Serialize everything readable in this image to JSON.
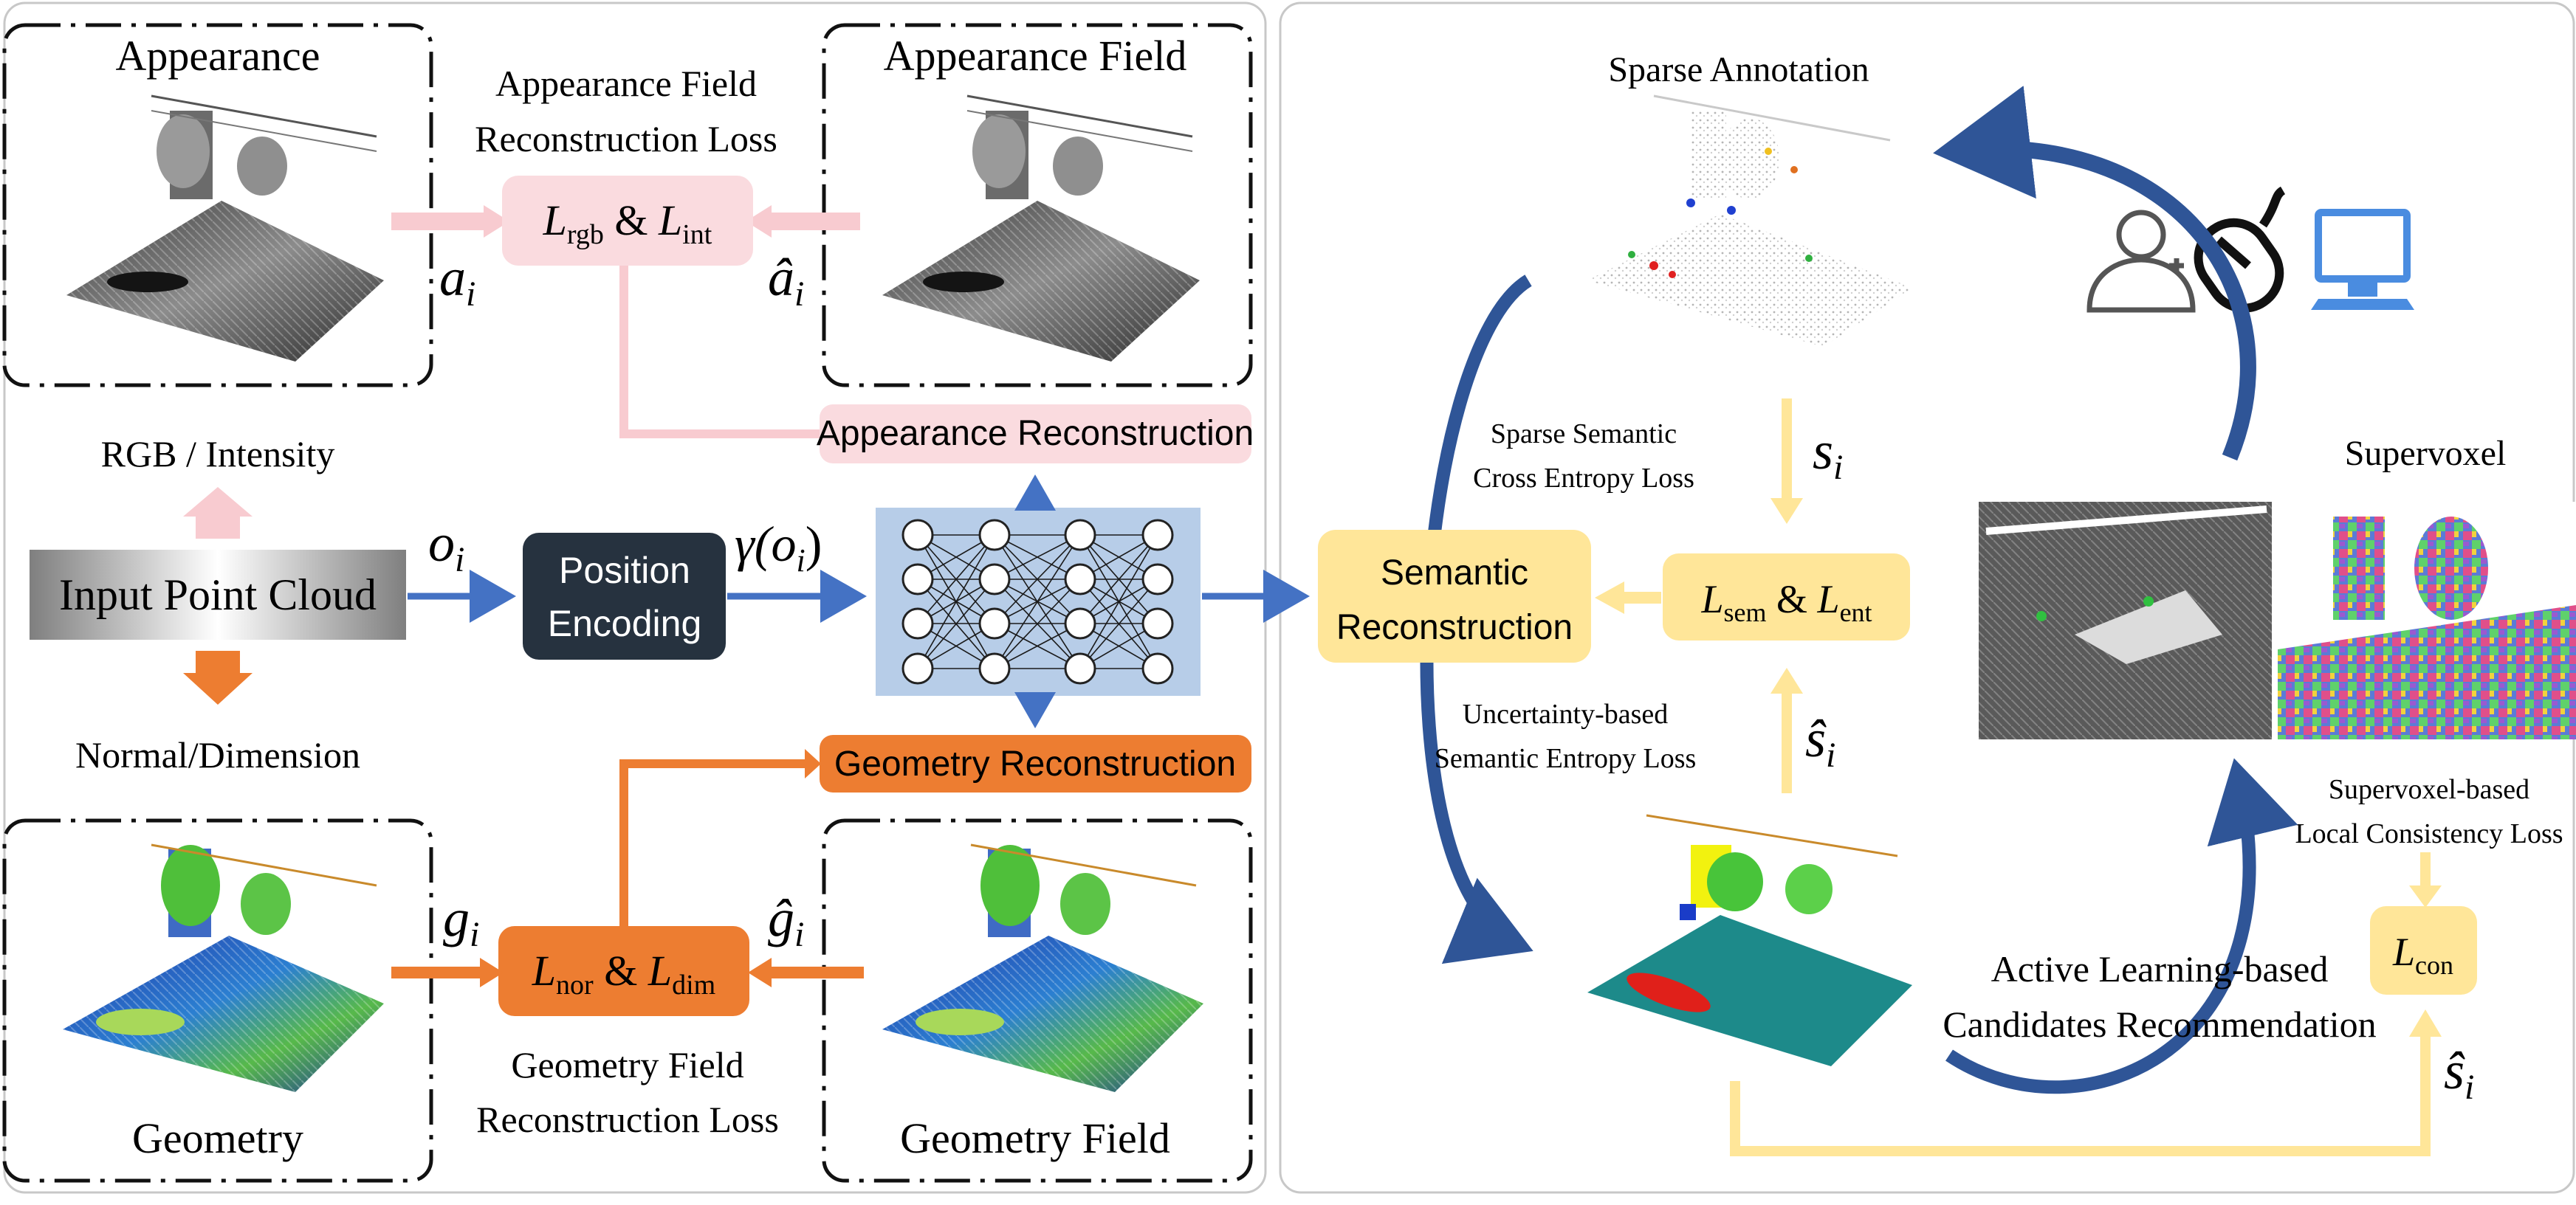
{
  "left_panel": {
    "appearance": {
      "box_title": "Appearance",
      "field_title": "Appearance Field",
      "loss_title_line1": "Appearance Field",
      "loss_title_line2": "Reconstruction Loss",
      "loss_symbol_a": "L",
      "loss_sub_a": "rgb",
      "loss_amp": " & ",
      "loss_symbol_b": "L",
      "loss_sub_b": "int",
      "input_symbol": "a",
      "input_sub": "i",
      "pred_symbol": "â",
      "pred_sub": "i",
      "recon_label": "Appearance Reconstruction"
    },
    "attribute_up_label": "RGB / Intensity",
    "attribute_down_label": "Normal/Dimension",
    "input_box_label": "Input Point Cloud",
    "position_symbol": "o",
    "position_sub": "i",
    "position_box_line1": "Position",
    "position_box_line2": "Encoding",
    "encoding_symbol": "γ(o",
    "encoding_sub": "i",
    "encoding_close": ")",
    "geometry": {
      "box_title": "Geometry",
      "field_title": "Geometry Field",
      "loss_title_line1": "Geometry Field",
      "loss_title_line2": "Reconstruction Loss",
      "loss_symbol_a": "L",
      "loss_sub_a": "nor",
      "loss_amp": " & ",
      "loss_symbol_b": "L",
      "loss_sub_b": "dim",
      "input_symbol": "g",
      "input_sub": "i",
      "pred_symbol": "ĝ",
      "pred_sub": "i",
      "recon_label": "Geometry Reconstruction"
    }
  },
  "right_panel": {
    "sparse_annotation_title": "Sparse Annotation",
    "sparse_loss_line1": "Sparse Semantic",
    "sparse_loss_line2": "Cross Entropy Loss",
    "semantic_box_line1": "Semantic",
    "semantic_box_line2": "Reconstruction",
    "sem_loss_symbol_a": "L",
    "sem_loss_sub_a": "sem",
    "sem_loss_amp": " & ",
    "sem_loss_symbol_b": "L",
    "sem_loss_sub_b": "ent",
    "s_symbol": "s",
    "s_sub": "i",
    "s_hat_symbol": "ŝ",
    "s_hat_sub": "i",
    "uncertainty_loss_line1": "Uncertainty-based",
    "uncertainty_loss_line2": "Semantic Entropy Loss",
    "supervoxel_title": "Supervoxel",
    "supervoxel_loss_line1": "Supervoxel-based",
    "supervoxel_loss_line2": "Local Consistency Loss",
    "con_loss_symbol": "L",
    "con_loss_sub": "con",
    "s_hat_bottom_symbol": "ŝ",
    "s_hat_bottom_sub": "i",
    "active_learning_line1": "Active Learning-based",
    "active_learning_line2": "Candidates Recommendation"
  },
  "colors": {
    "blue_arrow": "#4472c4",
    "curve_blue": "#2f5597",
    "pink": "#fadbdf",
    "pink_arrow": "#f8cbd0",
    "orange": "#ed7d31",
    "yellow": "#ffe699",
    "yellow_arrow": "#ffe699",
    "dark_box": "#26323f",
    "network_bg": "#b7cde8"
  },
  "icons": [
    "user-add-icon",
    "mouse-icon",
    "computer-icon"
  ]
}
